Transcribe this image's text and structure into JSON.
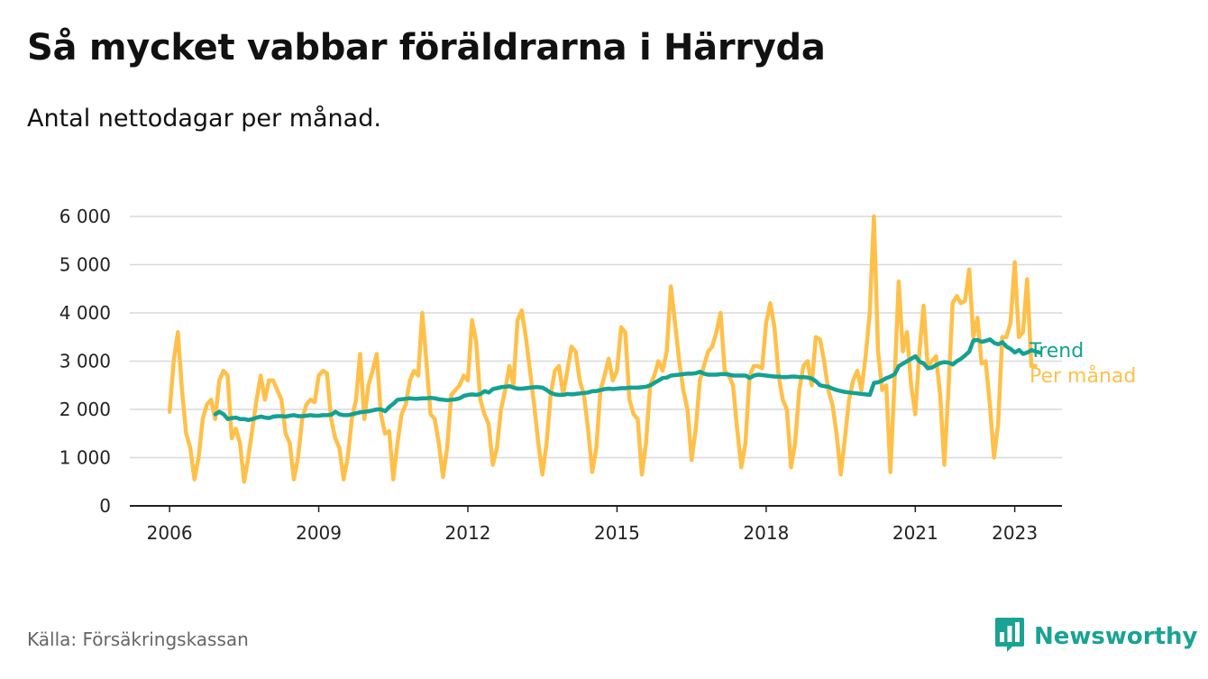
{
  "title": "Så mycket vabbar föräldrarna i Härryda",
  "subtitle": "Antal nettodagar per månad.",
  "source": "Källa: Försäkringskassan",
  "brand": {
    "name": "Newsworthy",
    "icon": "newsworthy-logo-icon",
    "color": "#1aa394"
  },
  "colors": {
    "monthly": "#ffc04a",
    "trend": "#14a192",
    "grid": "#d9d9d9",
    "axis": "#222222"
  },
  "chart_data": {
    "type": "line",
    "title": "Så mycket vabbar föräldrarna i Härryda",
    "subtitle": "Antal nettodagar per månad.",
    "xlabel": "",
    "ylabel": "",
    "x_unit": "year (decimal, monthly)",
    "x_start": 2006.0,
    "x_step": 0.0833333,
    "xlim": [
      2005.2,
      2023.95
    ],
    "ylim": [
      0,
      6000
    ],
    "x_ticks": [
      2006,
      2009,
      2012,
      2015,
      2018,
      2021,
      2023
    ],
    "x_tick_labels": [
      "2006",
      "2009",
      "2012",
      "2015",
      "2018",
      "2021",
      "2023"
    ],
    "y_ticks": [
      0,
      1000,
      2000,
      3000,
      4000,
      5000,
      6000
    ],
    "y_tick_labels": [
      "0",
      "1 000",
      "2 000",
      "3 000",
      "4 000",
      "5 000",
      "6 000"
    ],
    "grid": "horizontal",
    "legend": "series labels at right end of lines",
    "series": [
      {
        "name": "Per månad",
        "color": "#ffc04a",
        "values": [
          1950,
          3000,
          3600,
          2400,
          1500,
          1200,
          550,
          1000,
          1800,
          2100,
          2200,
          1800,
          2600,
          2800,
          2700,
          1400,
          1600,
          1300,
          500,
          1000,
          1600,
          2200,
          2700,
          2200,
          2600,
          2600,
          2400,
          2200,
          1500,
          1300,
          550,
          1000,
          1800,
          2100,
          2200,
          2150,
          2700,
          2800,
          2750,
          1800,
          1400,
          1200,
          550,
          1000,
          1800,
          2200,
          3150,
          1800,
          2500,
          2800,
          3150,
          1900,
          1500,
          1550,
          550,
          1300,
          1900,
          2100,
          2600,
          2800,
          2700,
          4000,
          3000,
          1900,
          1800,
          1300,
          600,
          1200,
          2300,
          2400,
          2500,
          2700,
          2600,
          3850,
          3400,
          2200,
          1900,
          1700,
          850,
          1200,
          2000,
          2400,
          2900,
          2500,
          3850,
          4050,
          3500,
          2800,
          2100,
          1300,
          650,
          1300,
          2300,
          2800,
          2900,
          2300,
          2800,
          3300,
          3200,
          2600,
          2300,
          1600,
          700,
          1200,
          2400,
          2700,
          3050,
          2600,
          2800,
          3700,
          3600,
          2200,
          1900,
          1800,
          650,
          1300,
          2500,
          2700,
          3000,
          2800,
          3200,
          4550,
          3800,
          3000,
          2400,
          2000,
          950,
          1600,
          2600,
          2900,
          3200,
          3300,
          3600,
          4000,
          2800,
          2700,
          2500,
          1600,
          800,
          1300,
          2700,
          2900,
          2900,
          2850,
          3800,
          4200,
          3700,
          2700,
          2200,
          2000,
          800,
          1300,
          2400,
          2900,
          3000,
          2500,
          3500,
          3450,
          3000,
          2400,
          2100,
          1500,
          650,
          1400,
          2200,
          2600,
          2800,
          2400,
          3100,
          4000,
          6000,
          3200,
          2400,
          2500,
          700,
          2600,
          4650,
          3200,
          3600,
          2500,
          1900,
          3200,
          4150,
          2900,
          3000,
          3100,
          2300,
          850,
          2400,
          4200,
          4350,
          4200,
          4250,
          4900,
          3500,
          3900,
          2950,
          3000,
          2100,
          1000,
          1700,
          3500,
          3500,
          3800,
          5050,
          3500,
          3600,
          4700,
          2900,
          2900
        ]
      },
      {
        "name": "Trend",
        "color": "#14a192",
        "x_start": 2006.92,
        "values": [
          1900,
          1950,
          1900,
          1800,
          1820,
          1830,
          1800,
          1800,
          1780,
          1800,
          1830,
          1850,
          1830,
          1820,
          1850,
          1860,
          1860,
          1850,
          1870,
          1880,
          1860,
          1860,
          1870,
          1880,
          1870,
          1870,
          1880,
          1880,
          1890,
          1950,
          1900,
          1880,
          1880,
          1900,
          1920,
          1940,
          1950,
          1960,
          1980,
          2000,
          2000,
          1960,
          2050,
          2120,
          2200,
          2210,
          2220,
          2230,
          2220,
          2220,
          2230,
          2230,
          2240,
          2230,
          2210,
          2200,
          2190,
          2200,
          2210,
          2230,
          2280,
          2300,
          2310,
          2300,
          2320,
          2380,
          2350,
          2420,
          2440,
          2460,
          2470,
          2480,
          2450,
          2430,
          2430,
          2440,
          2450,
          2460,
          2460,
          2450,
          2400,
          2340,
          2310,
          2300,
          2300,
          2320,
          2310,
          2320,
          2330,
          2340,
          2350,
          2380,
          2380,
          2400,
          2420,
          2430,
          2420,
          2430,
          2440,
          2440,
          2450,
          2450,
          2450,
          2460,
          2470,
          2500,
          2550,
          2600,
          2650,
          2660,
          2700,
          2710,
          2720,
          2730,
          2740,
          2740,
          2750,
          2780,
          2740,
          2720,
          2720,
          2720,
          2730,
          2730,
          2720,
          2700,
          2700,
          2700,
          2700,
          2650,
          2700,
          2720,
          2710,
          2700,
          2690,
          2680,
          2680,
          2670,
          2670,
          2680,
          2680,
          2670,
          2670,
          2660,
          2640,
          2580,
          2500,
          2480,
          2470,
          2430,
          2400,
          2380,
          2360,
          2350,
          2340,
          2330,
          2320,
          2310,
          2300,
          2550,
          2560,
          2600,
          2650,
          2680,
          2730,
          2900,
          2950,
          3000,
          3050,
          3100,
          2990,
          2950,
          2850,
          2870,
          2920,
          2960,
          2980,
          2970,
          2930,
          3000,
          3050,
          3120,
          3200,
          3430,
          3440,
          3400,
          3420,
          3450,
          3380,
          3350,
          3390,
          3300,
          3250,
          3180,
          3230,
          3150,
          3180,
          3230,
          3200,
          3180
        ]
      }
    ]
  }
}
